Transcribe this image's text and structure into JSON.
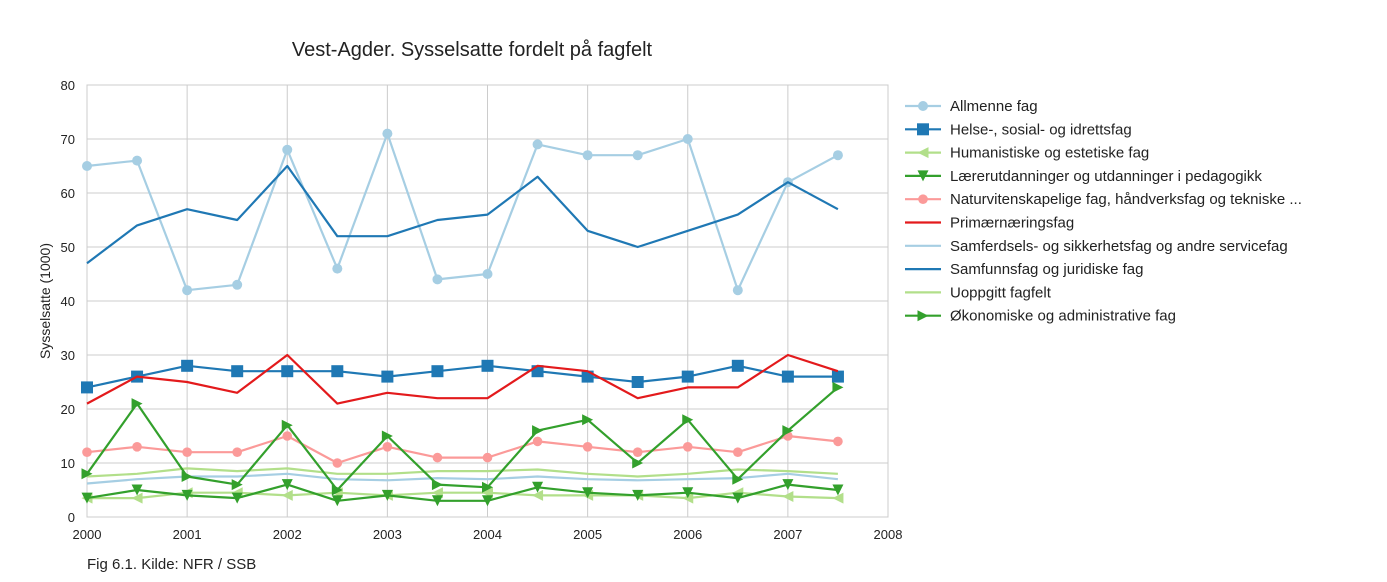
{
  "chart_data": {
    "type": "line",
    "title": "Vest-Agder. Sysselsatte fordelt på fagfelt",
    "xlabel": "",
    "ylabel": "Sysselsatte (1000)",
    "xlim": [
      2000,
      2008
    ],
    "ylim": [
      0,
      80
    ],
    "x_ticks": [
      "2000",
      "2001",
      "2002",
      "2003",
      "2004",
      "2005",
      "2006",
      "2007",
      "2008"
    ],
    "y_ticks": [
      "0",
      "10",
      "20",
      "30",
      "40",
      "50",
      "60",
      "70",
      "80"
    ],
    "grid": true,
    "legend_position": "right",
    "x": [
      2000,
      2000.5,
      2001,
      2001.5,
      2002,
      2002.5,
      2003,
      2003.5,
      2004,
      2004.5,
      2005,
      2005.5,
      2006,
      2006.5,
      2007,
      2007.5
    ],
    "series": [
      {
        "name": "Allmenne fag",
        "color": "#a6cee3",
        "marker": "circle",
        "values": [
          65,
          66,
          42,
          43,
          68,
          46,
          71,
          44,
          45,
          69,
          67,
          67,
          70,
          42,
          62,
          67
        ]
      },
      {
        "name": "Helse-, sosial- og idrettsfag",
        "color": "#1f78b4",
        "marker": "square",
        "values": [
          24,
          26,
          28,
          27,
          27,
          27,
          26,
          27,
          28,
          27,
          26,
          25,
          26,
          28,
          26,
          26
        ]
      },
      {
        "name": "Humanistiske og estetiske fag",
        "color": "#b2df8a",
        "marker": "triangle-left",
        "values": [
          3.5,
          3.5,
          4.5,
          4.5,
          4,
          4.5,
          4,
          4.5,
          4.5,
          4,
          4,
          4,
          3.5,
          4.5,
          3.8,
          3.5
        ]
      },
      {
        "name": "Lærerutdanninger og utdanninger i pedagogikk",
        "color": "#33a02c",
        "marker": "triangle-down",
        "values": [
          3.5,
          5,
          4,
          3.5,
          6,
          3,
          4,
          3,
          3,
          5.5,
          4.5,
          4,
          4.5,
          3.5,
          6,
          5
        ]
      },
      {
        "name": "Naturvitenskapelige fag, håndverksfag og tekniske ...",
        "color": "#fb9a99",
        "marker": "octagon",
        "values": [
          12,
          13,
          12,
          12,
          15,
          10,
          13,
          11,
          11,
          14,
          13,
          12,
          13,
          12,
          15,
          14
        ]
      },
      {
        "name": "Primærnæringsfag",
        "color": "#e31a1c",
        "marker": "none",
        "values": [
          21,
          26,
          25,
          23,
          30,
          21,
          23,
          22,
          22,
          28,
          27,
          22,
          24,
          24,
          30,
          27
        ]
      },
      {
        "name": "Samferdsels- og sikkerhetsfag og andre servicefag",
        "color": "#a6cee3",
        "marker": "none",
        "values": [
          6.2,
          7,
          7.5,
          7.5,
          8,
          7,
          6.8,
          7.2,
          7,
          7.5,
          7,
          6.8,
          7,
          7.2,
          8,
          7
        ]
      },
      {
        "name": "Samfunnsfag og juridiske fag",
        "color": "#1f78b4",
        "marker": "none",
        "values": [
          47,
          54,
          57,
          55,
          65,
          52,
          52,
          55,
          56,
          63,
          53,
          50,
          53,
          56,
          62,
          57
        ]
      },
      {
        "name": "Uoppgitt fagfelt",
        "color": "#b2df8a",
        "marker": "none",
        "values": [
          7.5,
          8,
          9,
          8.5,
          9,
          8,
          8,
          8.5,
          8.5,
          8.8,
          8,
          7.5,
          8,
          8.8,
          8.5,
          8
        ]
      },
      {
        "name": "Økonomiske og administrative fag",
        "color": "#33a02c",
        "marker": "triangle-right",
        "values": [
          8,
          21,
          7.5,
          6,
          17,
          5,
          15,
          6,
          5.5,
          16,
          18,
          10,
          18,
          7,
          16,
          24
        ]
      }
    ]
  },
  "caption": "Fig 6.1. Kilde: NFR / SSB"
}
